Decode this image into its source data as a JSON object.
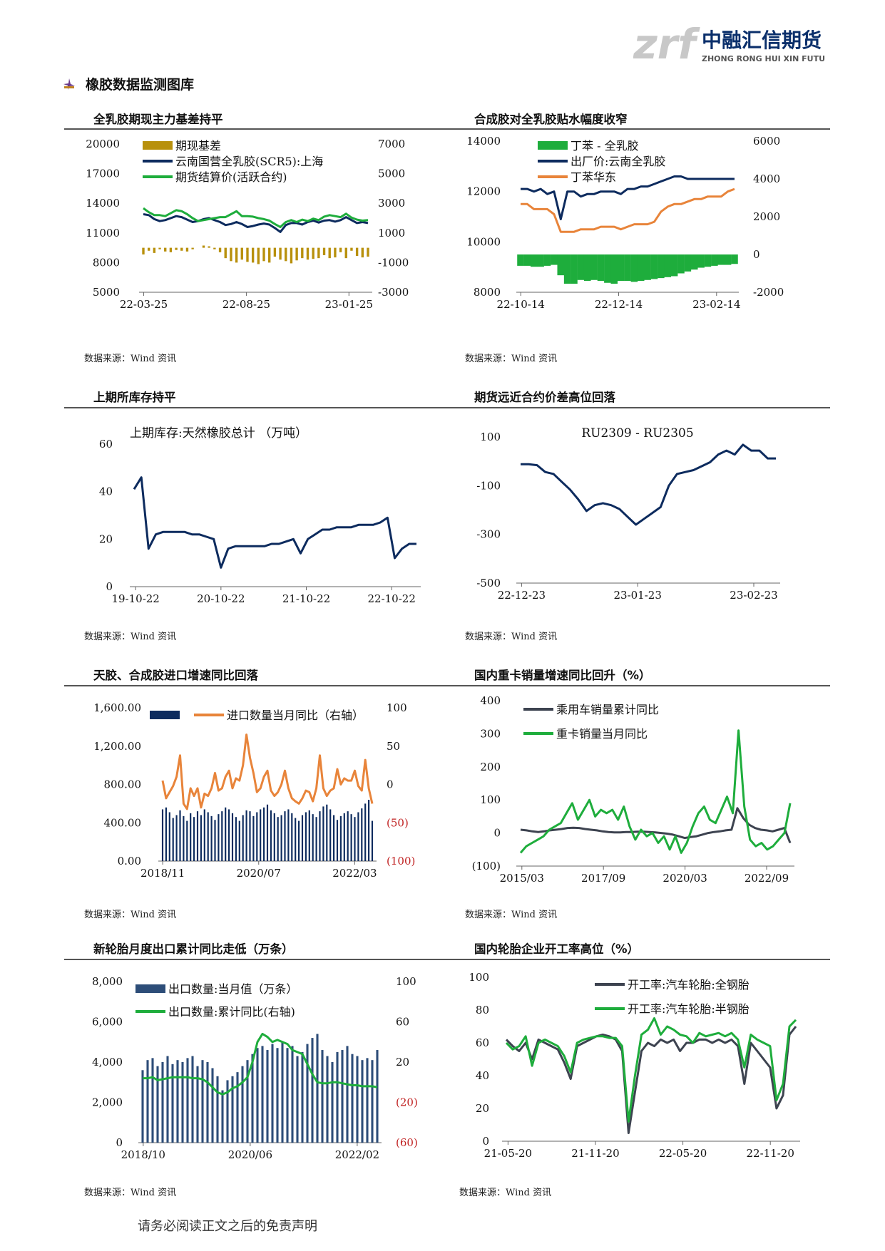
{
  "logo": {
    "mark": "zrf",
    "name_cn": "中融汇信期货",
    "name_en": "ZHONG RONG HUI XIN FUTURES",
    "colors": [
      "#c8c8c8",
      "#0a2f6b"
    ]
  },
  "section_title": "橡胶数据监测图库",
  "source_label": "数据来源：Wind 资讯",
  "footer": "请务必阅读正文之后的免责声明",
  "panels": [
    {
      "title": "全乳胶期现主力基差持平"
    },
    {
      "title": "合成胶对全乳胶贴水幅度收窄"
    },
    {
      "title": "上期所库存持平"
    },
    {
      "title": "期货远近合约价差高位回落"
    },
    {
      "title": "天胶、合成胶进口增速同比回落"
    },
    {
      "title": "国内重卡销量增速同比回升（%）"
    },
    {
      "title": "新轮胎月度出口累计同比走低（万条）"
    },
    {
      "title": "国内轮胎企业开工率高位（%）"
    }
  ],
  "chart_data": [
    {
      "type": "bar+line",
      "title": "",
      "yticks": [
        "20000",
        "17000",
        "14000",
        "11000",
        "8000",
        "5000"
      ],
      "y2ticks": [
        "7000",
        "5000",
        "3000",
        "1000",
        "-1000",
        "-3000"
      ],
      "xticks": [
        "22-03-25",
        "22-08-25",
        "23-01-25"
      ],
      "ylim": [
        5000,
        20000
      ],
      "y2lim": [
        -3000,
        7000
      ],
      "legend": [
        {
          "label": "期现基差",
          "kind": "bar",
          "color": "#b8900c"
        },
        {
          "label": "云南国营全乳胶(SCR5):上海",
          "kind": "line",
          "color": "#0d2b5e"
        },
        {
          "label": "期货结算价(活跃合约)",
          "kind": "line",
          "color": "#1ead3c"
        }
      ],
      "series": [
        {
          "name": "期现基差",
          "axis": "right",
          "color": "#b8900c",
          "values": [
            -450,
            -200,
            -350,
            -100,
            -250,
            -300,
            -150,
            -200,
            -250,
            -100,
            0,
            150,
            100,
            -100,
            -300,
            -700,
            -900,
            -1000,
            -800,
            -950,
            -1000,
            -1100,
            -900,
            -1000,
            -600,
            -800,
            -900,
            -1050,
            -850,
            -700,
            -800,
            -750,
            -700,
            -500,
            -700,
            -650,
            -300,
            -700,
            -200,
            -550,
            -650,
            -600
          ]
        },
        {
          "name": "云南国营全乳胶(SCR5):上海",
          "axis": "left",
          "color": "#0d2b5e",
          "values": [
            12900,
            12800,
            12400,
            12200,
            12300,
            12500,
            12700,
            12600,
            12350,
            12100,
            12200,
            12400,
            12500,
            12300,
            12100,
            11800,
            11900,
            12100,
            11900,
            11600,
            11700,
            11850,
            11950,
            11850,
            11500,
            11100,
            11800,
            12000,
            12000,
            11850,
            12100,
            12250,
            12050,
            12250,
            12300,
            12150,
            12300,
            12600,
            12300,
            12000,
            12100,
            12000
          ]
        },
        {
          "name": "期货结算价(活跃合约)",
          "axis": "left",
          "color": "#1ead3c",
          "values": [
            13500,
            13100,
            12800,
            12800,
            12700,
            13000,
            13300,
            13200,
            12900,
            12500,
            12200,
            12300,
            12400,
            12500,
            12600,
            12600,
            12900,
            13200,
            12700,
            12700,
            12650,
            12500,
            12400,
            12250,
            11900,
            11600,
            12100,
            12300,
            12100,
            12350,
            12200,
            12450,
            12300,
            12650,
            12800,
            12700,
            12600,
            12950,
            12550,
            12350,
            12250,
            12300
          ]
        }
      ]
    },
    {
      "type": "area+line",
      "title": "",
      "yticks": [
        "14000",
        "12000",
        "10000",
        "8000"
      ],
      "y2ticks": [
        "6000",
        "4000",
        "2000",
        "0",
        "-2000"
      ],
      "xticks": [
        "22-10-14",
        "22-12-14",
        "23-02-14"
      ],
      "ylim": [
        8000,
        14000
      ],
      "y2lim": [
        -2000,
        6000
      ],
      "legend": [
        {
          "label": "丁苯 - 全乳胶",
          "kind": "bar",
          "color": "#1ead3c"
        },
        {
          "label": "出厂价:云南全乳胶",
          "kind": "line",
          "color": "#0d2b5e"
        },
        {
          "label": "丁苯华东",
          "kind": "line",
          "color": "#e8843a"
        }
      ],
      "series": [
        {
          "name": "丁苯 - 全乳胶",
          "axis": "right",
          "color": "#1ead3c",
          "values": [
            -600,
            -600,
            -650,
            -650,
            -600,
            -550,
            -1100,
            -1550,
            -1550,
            -1350,
            -1400,
            -1350,
            -1400,
            -1500,
            -1550,
            -1400,
            -1400,
            -1450,
            -1400,
            -1350,
            -1300,
            -1250,
            -1200,
            -1150,
            -1000,
            -900,
            -800,
            -700,
            -650,
            -600,
            -550,
            -550,
            -500
          ]
        },
        {
          "name": "出厂价:云南全乳胶",
          "axis": "left",
          "color": "#0d2b5e",
          "values": [
            12100,
            12100,
            12000,
            12100,
            11900,
            12000,
            10900,
            12000,
            12000,
            11800,
            11900,
            11900,
            12000,
            12000,
            12000,
            11900,
            12100,
            12100,
            12200,
            12200,
            12300,
            12400,
            12500,
            12600,
            12600,
            12500,
            12500,
            12500,
            12500,
            12500,
            12500,
            12500,
            12500
          ]
        },
        {
          "name": "丁苯华东",
          "axis": "left",
          "color": "#e8843a",
          "values": [
            11500,
            11500,
            11300,
            11300,
            11300,
            11100,
            10400,
            10400,
            10400,
            10500,
            10500,
            10500,
            10600,
            10600,
            10600,
            10500,
            10600,
            10700,
            10700,
            10700,
            10800,
            11200,
            11400,
            11500,
            11500,
            11600,
            11700,
            11700,
            11800,
            11800,
            11800,
            12000,
            12100
          ]
        }
      ]
    },
    {
      "type": "line",
      "title": "上期库存:天然橡胶总计  （万吨）",
      "yticks": [
        "60",
        "40",
        "20",
        "0"
      ],
      "xticks": [
        "19-10-22",
        "20-10-22",
        "21-10-22",
        "22-10-22"
      ],
      "ylim": [
        0,
        60
      ],
      "series": [
        {
          "name": "",
          "color": "#0d2b5e",
          "values": [
            41,
            46,
            16,
            22,
            23,
            23,
            23,
            23,
            22,
            22,
            21,
            20,
            8,
            16,
            17,
            17,
            17,
            17,
            17,
            18,
            18,
            19,
            20,
            14,
            20,
            22,
            24,
            24,
            25,
            25,
            25,
            26,
            26,
            26,
            27,
            29,
            12,
            16,
            18,
            18
          ]
        }
      ]
    },
    {
      "type": "line",
      "title": "RU2309 - RU2305",
      "yticks": [
        "100",
        "-100",
        "-300",
        "-500"
      ],
      "xticks": [
        "22-12-23",
        "23-01-23",
        "23-02-23"
      ],
      "ylim": [
        -600,
        150
      ],
      "series": [
        {
          "name": "",
          "color": "#0d2b5e",
          "values": [
            10,
            10,
            5,
            -30,
            -40,
            -80,
            -120,
            -170,
            -230,
            -200,
            -190,
            -200,
            -220,
            -260,
            -300,
            -270,
            -240,
            -210,
            -100,
            -40,
            -30,
            -20,
            0,
            20,
            60,
            80,
            60,
            110,
            80,
            80,
            40,
            40
          ]
        }
      ]
    },
    {
      "type": "bar+line",
      "title": "",
      "yticks": [
        "1,600.00",
        "1,200.00",
        "800.00",
        "400.00",
        "0.00"
      ],
      "y2ticks": [
        "100",
        "50",
        "0",
        "(50)",
        "(100)"
      ],
      "xticks": [
        "2018/11",
        "2020/07",
        "2022/03"
      ],
      "ylim": [
        0,
        1600
      ],
      "y2lim": [
        -100,
        100
      ],
      "legend": [
        {
          "label": "",
          "kind": "bar",
          "color": "#0d2b5e"
        },
        {
          "label": "进口数量当月同比（右轴）",
          "kind": "line",
          "color": "#e8843a"
        }
      ],
      "series": [
        {
          "name": "",
          "axis": "left",
          "color": "#0d2b5e",
          "values": [
            540,
            560,
            510,
            450,
            480,
            530,
            470,
            420,
            500,
            460,
            520,
            480,
            540,
            510,
            470,
            430,
            490,
            520,
            560,
            540,
            500,
            460,
            420,
            480,
            530,
            520,
            470,
            510,
            540,
            560,
            590,
            530,
            500,
            460,
            480,
            520,
            540,
            500,
            450,
            420,
            480,
            510,
            530,
            490,
            460,
            520,
            570,
            590,
            540,
            480,
            430,
            470,
            500,
            520,
            490,
            460,
            510,
            550,
            600,
            640,
            420
          ]
        },
        {
          "name": "进口数量当月同比（右轴）",
          "axis": "right",
          "color": "#e8843a",
          "values": [
            5,
            -18,
            -10,
            -2,
            10,
            38,
            -25,
            -32,
            -5,
            -15,
            -5,
            -30,
            -12,
            -15,
            -5,
            15,
            -8,
            -5,
            10,
            18,
            -5,
            8,
            5,
            25,
            65,
            35,
            15,
            -10,
            -5,
            10,
            18,
            -8,
            -15,
            -10,
            0,
            18,
            -5,
            -18,
            -22,
            -25,
            -18,
            -8,
            -10,
            -22,
            -5,
            38,
            -5,
            -15,
            -8,
            -5,
            20,
            0,
            8,
            5,
            5,
            18,
            -2,
            -8,
            32,
            -5,
            -25
          ]
        }
      ]
    },
    {
      "type": "line",
      "title": "",
      "yticks": [
        "400",
        "300",
        "200",
        "100",
        "0",
        "(100)"
      ],
      "xticks": [
        "2015/03",
        "2017/09",
        "2020/03",
        "2022/09"
      ],
      "ylim": [
        -100,
        400
      ],
      "legend": [
        {
          "label": "乘用车销量累计同比",
          "kind": "line",
          "color": "#3d4350"
        },
        {
          "label": "重卡销量当月同比",
          "kind": "line",
          "color": "#1ead3c"
        }
      ],
      "series": [
        {
          "name": "乘用车销量累计同比",
          "color": "#3d4350",
          "values": [
            10,
            8,
            5,
            3,
            5,
            8,
            10,
            12,
            15,
            16,
            15,
            12,
            10,
            8,
            5,
            3,
            2,
            2,
            3,
            3,
            4,
            4,
            3,
            2,
            0,
            -2,
            -5,
            -10,
            -15,
            -12,
            -10,
            -5,
            0,
            3,
            5,
            8,
            10,
            75,
            45,
            25,
            15,
            10,
            8,
            5,
            10,
            15,
            -30
          ]
        },
        {
          "name": "重卡销量当月同比",
          "color": "#1ead3c",
          "values": [
            -60,
            -40,
            -30,
            -20,
            -10,
            10,
            20,
            30,
            60,
            90,
            40,
            70,
            100,
            50,
            70,
            60,
            70,
            40,
            80,
            20,
            -20,
            10,
            -10,
            0,
            -30,
            -10,
            -50,
            -10,
            -60,
            -30,
            20,
            60,
            80,
            40,
            30,
            70,
            110,
            60,
            310,
            80,
            -20,
            -40,
            -30,
            -50,
            -40,
            -20,
            0,
            90
          ]
        }
      ]
    },
    {
      "type": "bar+line",
      "title": "",
      "yticks": [
        "8,000",
        "6,000",
        "4,000",
        "2,000",
        "0"
      ],
      "y2ticks": [
        "100",
        "60",
        "20",
        "(20)",
        "(60)"
      ],
      "xticks": [
        "2018/10",
        "2020/06",
        "2022/02"
      ],
      "ylim": [
        0,
        8000
      ],
      "y2lim": [
        -60,
        100
      ],
      "legend": [
        {
          "label": "出口数量:当月值（万条）",
          "kind": "bar",
          "color": "#2d4d78"
        },
        {
          "label": "出口数量:累计同比(右轴)",
          "kind": "line",
          "color": "#1ead3c"
        }
      ],
      "series": [
        {
          "name": "出口数量:当月值（万条）",
          "axis": "left",
          "color": "#2d4d78",
          "values": [
            3600,
            4100,
            4200,
            3800,
            4000,
            4300,
            3900,
            4100,
            4000,
            4200,
            4300,
            3800,
            4100,
            4000,
            3700,
            3300,
            2600,
            3100,
            3300,
            3500,
            3800,
            4100,
            4400,
            4700,
            4800,
            4600,
            4900,
            4700,
            5000,
            4700,
            4800,
            4300,
            4500,
            4900,
            5200,
            5400,
            4600,
            4300,
            4000,
            4500,
            4600,
            4800,
            4400,
            4300,
            4100,
            4200,
            4100,
            4600
          ]
        },
        {
          "name": "出口数量:累计同比(右轴)",
          "axis": "right",
          "color": "#1ead3c",
          "values": [
            4,
            4,
            5,
            2,
            3,
            4,
            5,
            5,
            5,
            5,
            4,
            4,
            3,
            0,
            -5,
            -10,
            -12,
            -10,
            -6,
            -4,
            0,
            5,
            20,
            40,
            48,
            45,
            40,
            42,
            40,
            38,
            32,
            30,
            28,
            18,
            8,
            0,
            -1,
            -1,
            0,
            0,
            -1,
            -2,
            -3,
            -3,
            -4,
            -4,
            -4,
            -5
          ]
        }
      ]
    },
    {
      "type": "line",
      "title": "",
      "yticks": [
        "100",
        "80",
        "60",
        "40",
        "20",
        "0"
      ],
      "xticks": [
        "21-05-20",
        "21-11-20",
        "22-05-20",
        "22-11-20"
      ],
      "ylim": [
        0,
        100
      ],
      "legend": [
        {
          "label": "开工率:汽车轮胎:全钢胎",
          "kind": "line",
          "color": "#3d4350"
        },
        {
          "label": "开工率:汽车轮胎:半钢胎",
          "kind": "line",
          "color": "#1ead3c"
        }
      ],
      "series": [
        {
          "name": "开工率:汽车轮胎:全钢胎",
          "color": "#3d4350",
          "values": [
            62,
            58,
            55,
            60,
            50,
            62,
            60,
            58,
            56,
            48,
            38,
            58,
            60,
            62,
            64,
            65,
            64,
            62,
            55,
            5,
            30,
            55,
            60,
            58,
            62,
            60,
            62,
            55,
            60,
            60,
            62,
            62,
            60,
            62,
            60,
            62,
            58,
            35,
            60,
            55,
            50,
            45,
            20,
            28,
            65,
            70
          ]
        },
        {
          "name": "开工率:汽车轮胎:半钢胎",
          "color": "#1ead3c",
          "values": [
            60,
            56,
            58,
            64,
            46,
            60,
            62,
            60,
            58,
            52,
            42,
            60,
            62,
            63,
            64,
            64,
            63,
            63,
            58,
            12,
            40,
            65,
            68,
            75,
            65,
            70,
            68,
            65,
            64,
            60,
            66,
            64,
            65,
            66,
            64,
            66,
            62,
            45,
            65,
            62,
            60,
            58,
            25,
            35,
            70,
            74
          ]
        }
      ]
    }
  ]
}
